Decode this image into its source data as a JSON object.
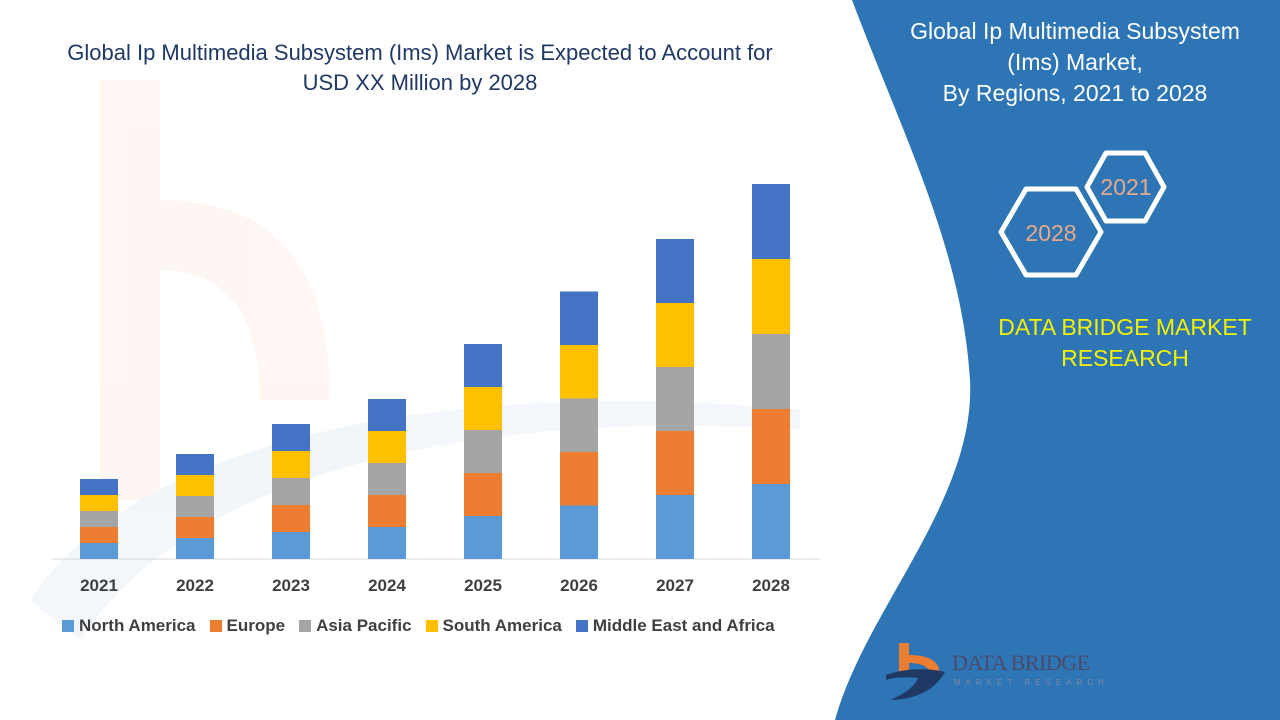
{
  "header": {
    "title_line1": "Global Ip Multimedia Subsystem (Ims) Market is Expected to Account for",
    "title_line2": "USD XX Million by 2028"
  },
  "side_panel": {
    "title_line1": "Global Ip Multimedia Subsystem",
    "title_line2": "(Ims) Market,",
    "title_line3": "By Regions,  2021 to 2028",
    "hex_start": "2021",
    "hex_end": "2028",
    "brand_line1": "DATA BRIDGE MARKET",
    "brand_line2": "RESEARCH",
    "logo_text": "DATA BRIDGE",
    "logo_subtext": "MARKET RESEARCH",
    "panel_color": "#2e75b6",
    "brand_color": "#f2f200",
    "hex_text_color": "#e8a98a"
  },
  "chart_data": {
    "type": "bar",
    "stacked": true,
    "categories": [
      "2021",
      "2022",
      "2023",
      "2024",
      "2025",
      "2026",
      "2027",
      "2028"
    ],
    "series": [
      {
        "name": "North America",
        "color": "#5b9bd5",
        "values": [
          16,
          21,
          27,
          32,
          43,
          53.5,
          64,
          75
        ]
      },
      {
        "name": "Europe",
        "color": "#ed7d31",
        "values": [
          16,
          21,
          27,
          32,
          43,
          53.5,
          64,
          75
        ]
      },
      {
        "name": "Asia Pacific",
        "color": "#a5a5a5",
        "values": [
          16,
          21,
          27,
          32,
          43,
          53.5,
          64,
          75
        ]
      },
      {
        "name": "South America",
        "color": "#ffc000",
        "values": [
          16,
          21,
          27,
          32,
          43,
          53.5,
          64,
          75
        ]
      },
      {
        "name": "Middle East and Africa",
        "color": "#4472c4",
        "values": [
          16,
          21,
          27,
          32,
          43,
          53.5,
          64,
          75
        ]
      }
    ],
    "title": "Global Ip Multimedia Subsystem (Ims) Market is Expected to Account for USD XX Million by 2028",
    "xlabel": "",
    "ylabel": "",
    "y_axis_shown": false,
    "grid": false,
    "legend_position": "bottom"
  }
}
